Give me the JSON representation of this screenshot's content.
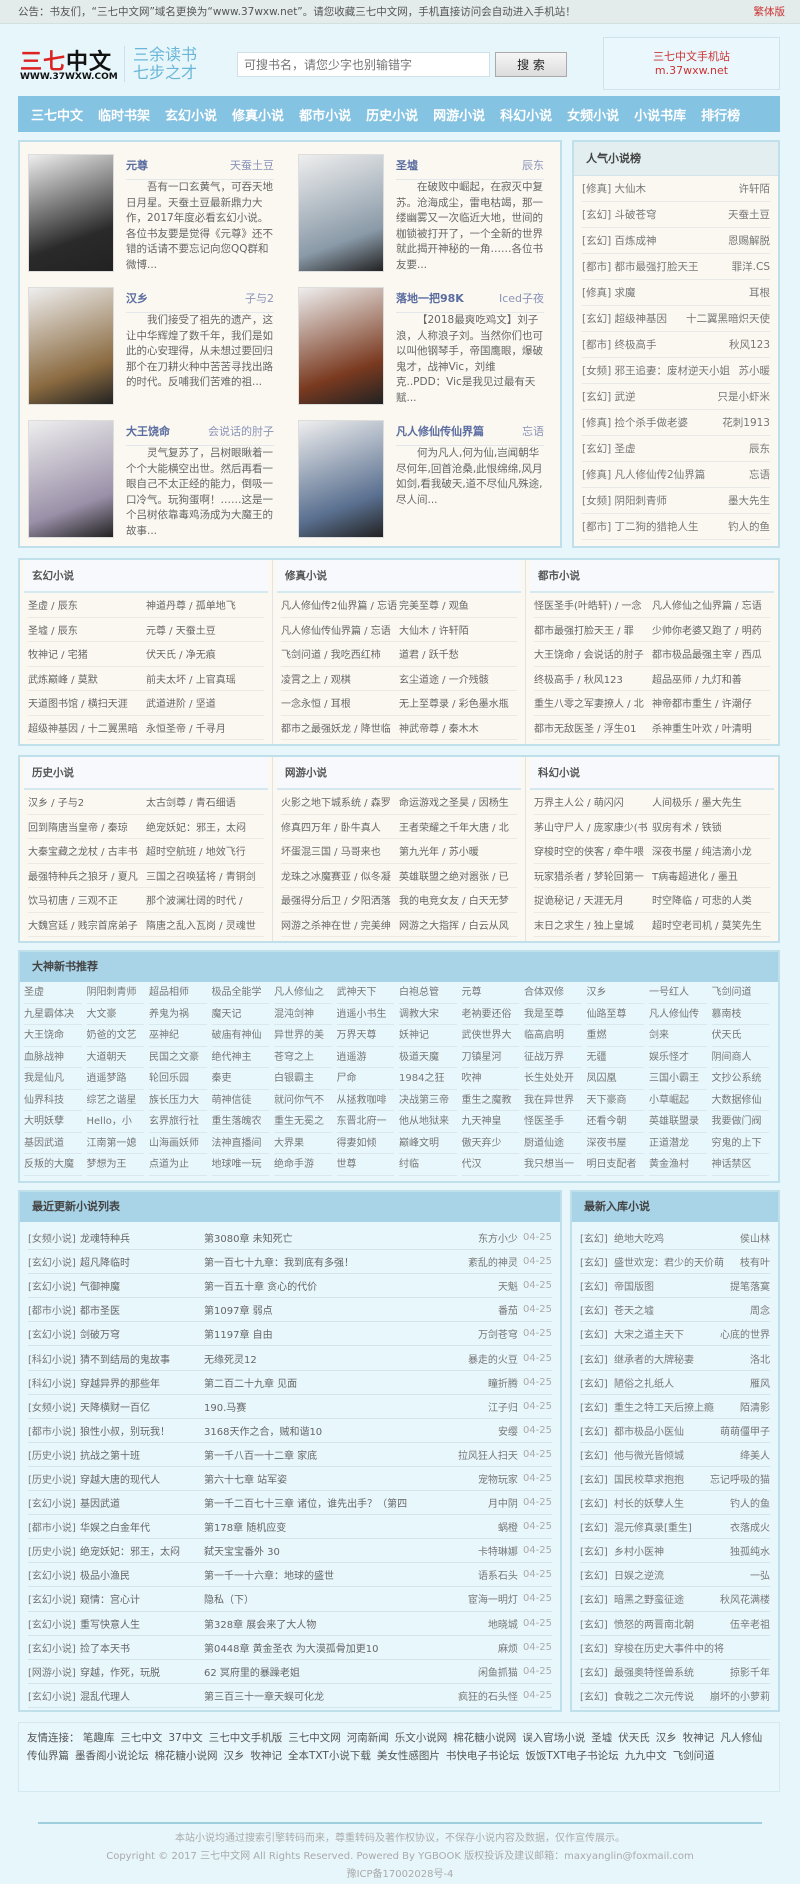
{
  "notice": {
    "text": "公告：书友们，“三七中文网”域名更换为“www.37wxw.net”。请您收藏三七中文网，手机直接访问会自动进入手机站！",
    "traditional": "繁体版"
  },
  "header": {
    "logo_main": "三七中文",
    "logo_url": "WWW.37WXW.COM",
    "slogan1": "三余读书",
    "slogan2": "七步之才",
    "search_placeholder": "可搜书名，请您少字也别输错字",
    "search_button": "搜 索",
    "mobile_title": "三七中文手机站",
    "mobile_url": "m.37wxw.net"
  },
  "nav": [
    "三七中文",
    "临时书架",
    "玄幻小说",
    "修真小说",
    "都市小说",
    "历史小说",
    "网游小说",
    "科幻小说",
    "女频小说",
    "小说书库",
    "排行榜"
  ],
  "featured": [
    {
      "title": "元尊",
      "author": "天蚕土豆",
      "desc": "吾有一口玄黄气，可吞天地日月星。天蚕土豆最新鼎力大作，2017年度必看玄幻小说。各位书友要是觉得《元尊》还不错的话请不要忘记向您QQ群和微博...",
      "cover": "#2a2a2a"
    },
    {
      "title": "圣墟",
      "author": "辰东",
      "desc": "在破败中崛起，在寂灭中复苏。沧海成尘，雷电枯竭，那一缕幽雾又一次临近大地，世间的枷锁被打开了，一个全新的世界就此揭开神秘的一角……各位书友要...",
      "cover": "#8a9aa8"
    },
    {
      "title": "汉乡",
      "author": "子与2",
      "desc": "我们接受了祖先的遗产，这让中华辉煌了数千年，我们是如此的心安理得，从未想过要回归那个在刀耕火种中苦苦寻找出路的时代。反哺我们苦难的祖...",
      "cover": "#8a6a40"
    },
    {
      "title": "落地一把98K",
      "author": "Iced子夜",
      "desc": "【2018最爽吃鸡文】刘子浪，人称浪子刘。当然你们也可以叫他钢琴手，帝国鹰眼，爆破鬼才，战神Vic，刘维克..PDD：Vic是我见过最有天赋...",
      "cover": "#7a3a20"
    },
    {
      "title": "大王饶命",
      "author": "会说话的肘子",
      "desc": "灵气复苏了，吕树眼瞅着一个个大能横空出世。然后再看一眼自己不太正经的能力，倒吸一口冷气。玩狗蛋啊！……这是一个吕树依靠毒鸡汤成为大魔王的故事...",
      "cover": "#9a90a8"
    },
    {
      "title": "凡人修仙传仙界篇",
      "author": "忘语",
      "desc": "何为凡人,何为仙,岂闻朝华尽何年,回首沧桑,此恨绵绵,风月如剑,看我破天,道不尽仙凡殊途,尽人间...",
      "cover": "#5a7090"
    }
  ],
  "popular": {
    "title": "人气小说榜",
    "items": [
      [
        "[修真] 大仙木",
        "许轩陌"
      ],
      [
        "[玄幻] 斗破苍穹",
        "天蚕土豆"
      ],
      [
        "[玄幻] 百炼成神",
        "恩赐解脱"
      ],
      [
        "[都市] 都市最强打脸天王",
        "罪洋.CS"
      ],
      [
        "[修真] 求魔",
        "耳根"
      ],
      [
        "[玄幻] 超级神基因",
        "十二翼黑暗炽天使"
      ],
      [
        "[都市] 终极高手",
        "秋风123"
      ],
      [
        "[女频] 邪王追妻：废材逆天小姐",
        "苏小暖"
      ],
      [
        "[玄幻] 武逆",
        "只是小虾米"
      ],
      [
        "[修真] 捡个杀手做老婆",
        "花刺1913"
      ],
      [
        "[玄幻] 圣虚",
        "辰东"
      ],
      [
        "[修真] 凡人修仙传2仙界篇",
        "忘语"
      ],
      [
        "[女频] 阴阳刺青师",
        "墨大先生"
      ],
      [
        "[都市] 丁二狗的猎艳人生",
        "钓人的鱼"
      ]
    ]
  },
  "categories_row1": [
    {
      "title": "玄幻小说",
      "rows": [
        [
          "圣虚 / 辰东",
          "神道丹尊 / 孤单地飞"
        ],
        [
          "圣墟 / 辰东",
          "元尊 / 天蚕土豆"
        ],
        [
          "牧神记 / 宅猪",
          "伏天氏 / 净无痕"
        ],
        [
          "武炼巅峰 / 莫默",
          "前夫太坏 / 上官真瑶"
        ],
        [
          "天道图书馆 / 横扫天涯",
          "武道进阶 / 坚道"
        ],
        [
          "超级神基因 / 十二翼黑暗",
          "永恒圣帝 / 千寻月"
        ]
      ]
    },
    {
      "title": "修真小说",
      "rows": [
        [
          "凡人修仙传2仙界篇 / 忘语",
          "完美至尊 / 观鱼"
        ],
        [
          "凡人修仙传仙界篇 / 忘语",
          "大仙木 / 许轩陌"
        ],
        [
          "飞剑问道 / 我吃西红柿",
          "道君 / 跃千愁"
        ],
        [
          "凌霄之上 / 观棋",
          "玄尘道途 / 一介残骸"
        ],
        [
          "一念永恒 / 耳根",
          "无上至尊录 / 彩色墨水瓶"
        ],
        [
          "都市之最强妖龙 / 降世临",
          "神武帝尊 / 秦木木"
        ]
      ]
    },
    {
      "title": "都市小说",
      "rows": [
        [
          "怪医圣手(叶皓轩) / 一念",
          "凡人修仙之仙界篇 / 忘语"
        ],
        [
          "都市最强打脸天王 / 罪",
          "少帅你老婆又跑了 / 明药"
        ],
        [
          "大王饶命 / 会说话的肘子",
          "都市极品最强主宰 / 西瓜"
        ],
        [
          "终极高手 / 秋风123",
          "超品巫师 / 九灯和善"
        ],
        [
          "重生八零之军妻撩人 / 北",
          "神帝都市重生 / 许潮仔"
        ],
        [
          "都市无敌医圣 / 浮生01",
          "杀神重生叶欢 / 叶清明"
        ]
      ]
    }
  ],
  "categories_row2": [
    {
      "title": "历史小说",
      "rows": [
        [
          "汉乡 / 子与2",
          "太古剑尊 / 青石细语"
        ],
        [
          "回到隋唐当皇帝 / 秦琼",
          "绝宠妖妃：邪王，太闷"
        ],
        [
          "大秦宝藏之龙杖 / 古丰书",
          "超时空航班 / 地效飞行"
        ],
        [
          "最强特种兵之狼牙 / 夏凡",
          "三国之召唤猛将 / 青铜剑"
        ],
        [
          "饮马初唐 / 三观不正",
          "那个波澜壮阔的时代 /"
        ],
        [
          "大魏宫廷 / 贱宗首席弟子",
          "隋唐之乱入瓦岗 / 灵魂世"
        ]
      ]
    },
    {
      "title": "网游小说",
      "rows": [
        [
          "火影之地下城系统 / 森罗",
          "命运游戏之圣昊 / 因杨生"
        ],
        [
          "修真四万年 / 卧牛真人",
          "王者荣耀之千年大唐 / 北"
        ],
        [
          "坏蛋混三国 / 马哥来也",
          "第九光年 / 苏小暖"
        ],
        [
          "龙珠之冰魔赛亚 / 似冬凝",
          "英雄联盟之绝对嚣张 / 已"
        ],
        [
          "最强得分后卫 / 夕阳洒落",
          "我的电竞女友 / 白天无梦"
        ],
        [
          "网游之杀神在世 / 完美绅",
          "网游之大指挥 / 白云从风"
        ]
      ]
    },
    {
      "title": "科幻小说",
      "rows": [
        [
          "万界主人公 / 萌闪闪",
          "人间极乐 / 墨大先生"
        ],
        [
          "茅山守尸人 / 庞家康少(书",
          "驭房有术 / 铁锁"
        ],
        [
          "穿梭时空的侠客 / 牵牛喂",
          "深夜书屋 / 纯洁滴小龙"
        ],
        [
          "玩家猎杀者 / 梦轮回第一",
          "T病毒超进化 / 墨丑"
        ],
        [
          "捉诡秘记 / 天涯无月",
          "时空降临 / 可悲的人类"
        ],
        [
          "末日之求生 / 独上皇城",
          "超时空老司机 / 莫笑先生"
        ]
      ]
    }
  ],
  "gods": {
    "title": "大神新书推荐",
    "items": [
      "圣虚",
      "阴阳刺青师",
      "超品相师",
      "极品全能学",
      "凡人修仙之",
      "武神天下",
      "白袍总管",
      "元尊",
      "合体双修",
      "汉乡",
      "一号红人",
      "飞剑问道",
      "九星霸体决",
      "大文豪",
      "养鬼为祸",
      "魔天记",
      "混沌剑神",
      "逍遥小书生",
      "调教大宋",
      "老衲要还俗",
      "我是至尊",
      "仙路至尊",
      "凡人修仙传",
      "慕南枝",
      "大王饶命",
      "奶爸的文艺",
      "巫神纪",
      "破庙有神仙",
      "异世界的美",
      "万界天尊",
      "妖神记",
      "武侠世界大",
      "临高启明",
      "重燃",
      "剑来",
      "伏天氏",
      "血脉战神",
      "大道朝天",
      "民国之文豪",
      "绝代神主",
      "苍穹之上",
      "逍遥游",
      "极道天魔",
      "刀镇星河",
      "征战万界",
      "无疆",
      "娱乐怪才",
      "阴间商人",
      "我是仙凡",
      "逍遥梦路",
      "轮回乐园",
      "秦吏",
      "白银霸主",
      "尸命",
      "1984之狂",
      "吹神",
      "长生处处开",
      "凤囚凰",
      "三国小霸王",
      "文抄公系统",
      "仙界科技",
      "综艺之谐星",
      "族长压力大",
      "萌神信徒",
      "就问你气不",
      "从拯救咖啡",
      "决战第三帝",
      "重生之魔教",
      "我在异世界",
      "天下豪商",
      "小草崛起",
      "大数据修仙",
      "大明妖孽",
      "Hello，小",
      "玄界旅行社",
      "重生落魄农",
      "重生无冕之",
      "东晋北府一",
      "他从地狱来",
      "九天神皇",
      "怪医圣手",
      "还看今朝",
      "英雄联盟录",
      "我要做门阀",
      "基因武道",
      "江南第一媳",
      "山海画妖师",
      "法神直播间",
      "大界果",
      "得妻如倾",
      "巅峰文明",
      "傲天弃少",
      "厨道仙途",
      "深夜书屋",
      "正道潜龙",
      "穷鬼的上下",
      "反叛的大魔",
      "梦想为王",
      "点道为止",
      "地球唯一玩",
      "绝命手游",
      "世尊",
      "纣临",
      "代汉",
      "我只想当一",
      "明日支配者",
      "黄金渔村",
      "神话禁区"
    ]
  },
  "updates": {
    "title": "最近更新小说列表",
    "items": [
      [
        "[女频小说]",
        "龙魂特种兵",
        "第3080章 未知死亡",
        "东方小少",
        "04-25"
      ],
      [
        "[玄幻小说]",
        "超凡降临时",
        "第一百七十九章：我到底有多强！",
        "紊乱的神灵",
        "04-25"
      ],
      [
        "[玄幻小说]",
        "气御神魔",
        "第一百五十章 贪心的代价",
        "天魁",
        "04-25"
      ],
      [
        "[都市小说]",
        "都市圣医",
        "第1097章 弱点",
        "番茄",
        "04-25"
      ],
      [
        "[玄幻小说]",
        "剑破万穹",
        "第1197章 自由",
        "万剑苍穹",
        "04-25"
      ],
      [
        "[科幻小说]",
        "猜不到结局的鬼故事",
        "无缘死灵12",
        "暴走的火豆",
        "04-25"
      ],
      [
        "[科幻小说]",
        "穿越异界的那些年",
        "第二百二十九章 见面",
        "瞳折腾",
        "04-25"
      ],
      [
        "[女频小说]",
        "天降横财一百亿",
        "190.马赛",
        "江子归",
        "04-25"
      ],
      [
        "[都市小说]",
        "狼性小叔，别玩我！",
        "3168天作之合，贼和谐10",
        "安缨",
        "04-25"
      ],
      [
        "[历史小说]",
        "抗战之第十班",
        "第一千八百一十二章 家底",
        "拉风狂人扫天",
        "04-25"
      ],
      [
        "[历史小说]",
        "穿越大唐的现代人",
        "第六十七章 站军姿",
        "宠物玩家",
        "04-25"
      ],
      [
        "[玄幻小说]",
        "基因武道",
        "第一千二百七十三章 诸位，谁先出手？（第四",
        "月中阴",
        "04-25"
      ],
      [
        "[都市小说]",
        "华娱之白金年代",
        "第178章 随机应变",
        "蜗橙",
        "04-25"
      ],
      [
        "[历史小说]",
        "绝宠妖妃：邪王，太闷",
        "弑天宝宝番外 30",
        "卡特琳娜",
        "04-25"
      ],
      [
        "[玄幻小说]",
        "极品小渔民",
        "第一千一十六章：地球的盛世",
        "语系石头",
        "04-25"
      ],
      [
        "[玄幻小说]",
        "窥情：宫心计",
        "隐私（下）",
        "宦海一明灯",
        "04-25"
      ],
      [
        "[玄幻小说]",
        "重写快意人生",
        "第328章 展会来了大人物",
        "地晓城",
        "04-25"
      ],
      [
        "[玄幻小说]",
        "捡了本天书",
        "第0448章 黄金圣衣 为大漠孤骨加更10",
        "麻烦",
        "04-25"
      ],
      [
        "[网游小说]",
        "穿越，作死，玩脱",
        "62 冥府里的暴躁老姐",
        "闲鱼抓猫",
        "04-25"
      ],
      [
        "[玄幻小说]",
        "混乱代理人",
        "第三百三十一章天蜈可化龙",
        "疯狂的石头怪",
        "04-25"
      ]
    ]
  },
  "newbooks": {
    "title": "最新入库小说",
    "items": [
      [
        "[玄幻]",
        "绝地大吃鸡",
        "侯山林"
      ],
      [
        "[玄幻]",
        "盛世欢宠：君少的天价萌",
        "枝有叶"
      ],
      [
        "[玄幻]",
        "帝国版图",
        "提笔落寞"
      ],
      [
        "[玄幻]",
        "苍天之墟",
        "周念"
      ],
      [
        "[玄幻]",
        "大宋之道主天下",
        "心底的世界"
      ],
      [
        "[玄幻]",
        "继承者的大牌秘妻",
        "洛北"
      ],
      [
        "[玄幻]",
        "陋俗之扎纸人",
        "雁风"
      ],
      [
        "[玄幻]",
        "重生之特工天后撩上瘾",
        "陌清影"
      ],
      [
        "[玄幻]",
        "都市极品小医仙",
        "萌萌僵甲子"
      ],
      [
        "[玄幻]",
        "他与微光皆倾城",
        "绛美人"
      ],
      [
        "[玄幻]",
        "国民校草求抱抱",
        "忘记呼吸的猫"
      ],
      [
        "[玄幻]",
        "村长的妖孽人生",
        "钓人的鱼"
      ],
      [
        "[玄幻]",
        "混元修真录[重生]",
        "衣落成火"
      ],
      [
        "[玄幻]",
        "乡村小医神",
        "独孤纯水"
      ],
      [
        "[玄幻]",
        "日娱之逆流",
        "一弘"
      ],
      [
        "[玄幻]",
        "暗黑之野蛮征途",
        "秋风花满楼"
      ],
      [
        "[玄幻]",
        "愤怒的两晋南北朝",
        "伍辛老祖"
      ],
      [
        "[玄幻]",
        "穿梭在历史大事件中的将",
        ""
      ],
      [
        "[玄幻]",
        "最强奥特怪兽系统",
        "掠影千年"
      ],
      [
        "[玄幻]",
        "食戟之二次元传说",
        "崩坏的小萝莉"
      ]
    ]
  },
  "friends": {
    "label": "友情连接：",
    "links": [
      "笔趣库",
      "三七中文",
      "37中文",
      "三七中文手机版",
      "三七中文网",
      "河南新闻",
      "乐文小说网",
      "棉花糖小说网",
      "误入官场小说",
      "圣墟",
      "伏天氏",
      "汉乡",
      "牧神记",
      "凡人修仙传仙界篇",
      "墨香阁小说论坛",
      "棉花糖小说网",
      "汉乡",
      "牧神记",
      "全本TXT小说下载",
      "美女性感图片",
      "书快电子书论坛",
      "饭饭TXT电子书论坛",
      "九九中文",
      "飞剑问道"
    ]
  },
  "footer": {
    "line1": "本站小说均通过搜索引擎转码而来，尊重转码及著作权协议，不保存小说内容及数据，仅作宣传展示。",
    "line2": "Copyright © 2017 三七中文网 All Rights Reserved. Powered By YGBOOK 版权投诉及建议邮箱：maxyanglin@foxmail.com",
    "line3": "豫ICP备17002028号-4"
  }
}
